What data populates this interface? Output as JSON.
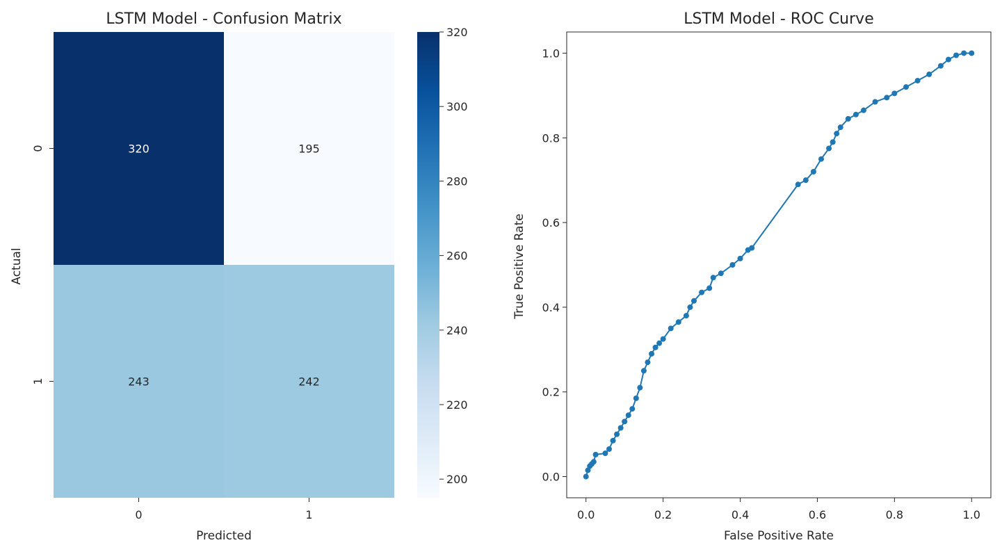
{
  "chart_data": [
    {
      "type": "heatmap",
      "title": "LSTM Model - Confusion Matrix",
      "xlabel": "Predicted",
      "ylabel": "Actual",
      "x_categories": [
        "0",
        "1"
      ],
      "y_categories": [
        "0",
        "1"
      ],
      "matrix": [
        [
          320,
          195
        ],
        [
          243,
          242
        ]
      ],
      "colormap": "Blues",
      "color_range": [
        195,
        320
      ],
      "colorbar_ticks": [
        "200",
        "220",
        "240",
        "260",
        "280",
        "300",
        "320"
      ]
    },
    {
      "type": "line",
      "title": "LSTM Model - ROC Curve",
      "xlabel": "False Positive Rate",
      "ylabel": "True Positive Rate",
      "xlim": [
        -0.05,
        1.05
      ],
      "ylim": [
        -0.05,
        1.05
      ],
      "x_ticks": [
        "0.0",
        "0.2",
        "0.4",
        "0.6",
        "0.8",
        "1.0"
      ],
      "y_ticks": [
        "0.0",
        "0.2",
        "0.4",
        "0.6",
        "0.8",
        "1.0"
      ],
      "color": "#1f77b4",
      "marker": "o",
      "grid": false,
      "x": [
        0.0,
        0.005,
        0.01,
        0.015,
        0.02,
        0.025,
        0.05,
        0.06,
        0.07,
        0.08,
        0.09,
        0.1,
        0.11,
        0.12,
        0.13,
        0.14,
        0.15,
        0.16,
        0.17,
        0.18,
        0.19,
        0.2,
        0.22,
        0.24,
        0.26,
        0.27,
        0.28,
        0.3,
        0.32,
        0.33,
        0.35,
        0.38,
        0.4,
        0.42,
        0.43,
        0.55,
        0.57,
        0.59,
        0.61,
        0.63,
        0.64,
        0.65,
        0.66,
        0.68,
        0.7,
        0.72,
        0.75,
        0.78,
        0.8,
        0.83,
        0.86,
        0.89,
        0.92,
        0.94,
        0.96,
        0.98,
        1.0
      ],
      "y": [
        0.0,
        0.015,
        0.025,
        0.03,
        0.035,
        0.052,
        0.055,
        0.065,
        0.085,
        0.1,
        0.115,
        0.13,
        0.145,
        0.16,
        0.185,
        0.21,
        0.25,
        0.27,
        0.29,
        0.305,
        0.315,
        0.325,
        0.35,
        0.365,
        0.38,
        0.4,
        0.415,
        0.435,
        0.445,
        0.47,
        0.48,
        0.5,
        0.515,
        0.535,
        0.54,
        0.69,
        0.7,
        0.72,
        0.75,
        0.775,
        0.79,
        0.81,
        0.825,
        0.845,
        0.855,
        0.865,
        0.885,
        0.895,
        0.905,
        0.92,
        0.935,
        0.95,
        0.97,
        0.985,
        0.995,
        1.0,
        1.0
      ]
    }
  ]
}
